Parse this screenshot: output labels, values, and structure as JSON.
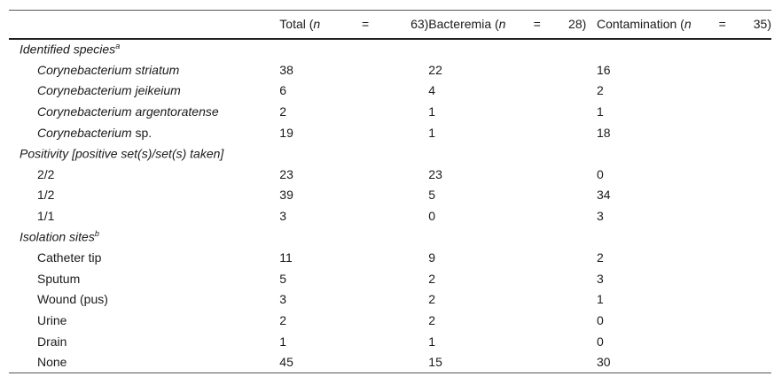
{
  "header": [
    {
      "label": "Total (",
      "n": "n",
      "eq": "=",
      "value": "63)"
    },
    {
      "label": "Bacteremia (",
      "n": "n",
      "eq": "=",
      "value": "28)"
    },
    {
      "label": "Contamination (",
      "n": "n",
      "eq": "=",
      "value": "35)"
    }
  ],
  "sections": [
    {
      "title": "Identified species",
      "sup": "a",
      "rows": [
        {
          "label_italic": "Corynebacterium striatum",
          "label_rest": "",
          "total": "38",
          "bacteremia": "22",
          "contamination": "16"
        },
        {
          "label_italic": "Corynebacterium jeikeium",
          "label_rest": "",
          "total": "6",
          "bacteremia": "4",
          "contamination": "2"
        },
        {
          "label_italic": "Corynebacterium argentoratense",
          "label_rest": "",
          "total": "2",
          "bacteremia": "1",
          "contamination": "1"
        },
        {
          "label_italic": "Corynebacterium",
          "label_rest": " sp.",
          "total": "19",
          "bacteremia": "1",
          "contamination": "18"
        }
      ]
    },
    {
      "title": "Positivity [positive set(s)/set(s) taken]",
      "sup": "",
      "rows": [
        {
          "label_italic": "",
          "label_rest": "2/2",
          "total": "23",
          "bacteremia": "23",
          "contamination": "0"
        },
        {
          "label_italic": "",
          "label_rest": "1/2",
          "total": "39",
          "bacteremia": "5",
          "contamination": "34"
        },
        {
          "label_italic": "",
          "label_rest": "1/1",
          "total": "3",
          "bacteremia": "0",
          "contamination": "3"
        }
      ]
    },
    {
      "title": "Isolation sites",
      "sup": "b",
      "rows": [
        {
          "label_italic": "",
          "label_rest": "Catheter tip",
          "total": "11",
          "bacteremia": "9",
          "contamination": "2"
        },
        {
          "label_italic": "",
          "label_rest": "Sputum",
          "total": "5",
          "bacteremia": "2",
          "contamination": "3"
        },
        {
          "label_italic": "",
          "label_rest": "Wound (pus)",
          "total": "3",
          "bacteremia": "2",
          "contamination": "1"
        },
        {
          "label_italic": "",
          "label_rest": "Urine",
          "total": "2",
          "bacteremia": "2",
          "contamination": "0"
        },
        {
          "label_italic": "",
          "label_rest": "Drain",
          "total": "1",
          "bacteremia": "1",
          "contamination": "0"
        },
        {
          "label_italic": "",
          "label_rest": "None",
          "total": "45",
          "bacteremia": "15",
          "contamination": "30"
        }
      ]
    }
  ]
}
